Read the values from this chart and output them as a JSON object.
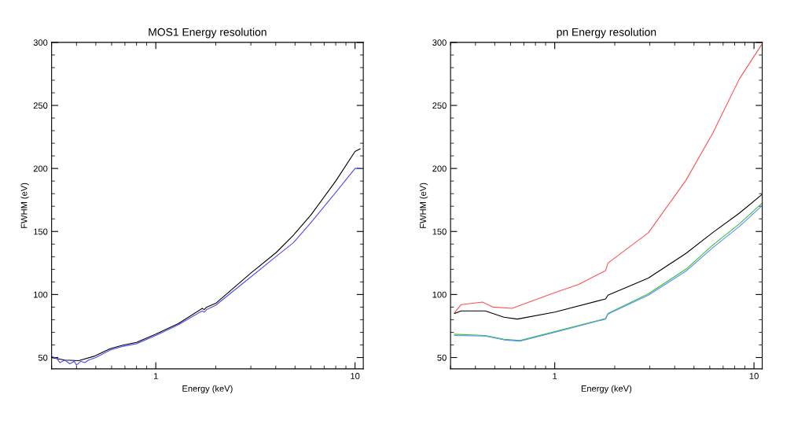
{
  "chart_data": [
    {
      "type": "line",
      "title": "MOS1 Energy resolution",
      "xlabel": "Energy (keV)",
      "ylabel": "FWHM (eV)",
      "log": "x",
      "xlim": [
        0.3,
        11
      ],
      "ylim": [
        41,
        300
      ],
      "xticks": [
        {
          "value": 0.3,
          "label": null
        },
        {
          "value": 0.4,
          "label": null
        },
        {
          "value": 0.5,
          "label": null
        },
        {
          "value": 0.6,
          "label": null
        },
        {
          "value": 0.7,
          "label": null
        },
        {
          "value": 0.8,
          "label": null
        },
        {
          "value": 0.9,
          "label": null
        },
        1,
        {
          "value": 2,
          "label": null
        },
        {
          "value": 3,
          "label": null
        },
        {
          "value": 4,
          "label": null
        },
        {
          "value": 5,
          "label": null
        },
        {
          "value": 6,
          "label": null
        },
        {
          "value": 7,
          "label": null
        },
        {
          "value": 8,
          "label": null
        },
        {
          "value": 9,
          "label": null
        },
        10
      ],
      "yticks": [
        50,
        {
          "value": 60,
          "label": null
        },
        {
          "value": 70,
          "label": null
        },
        {
          "value": 80,
          "label": null
        },
        {
          "value": 90,
          "label": null
        },
        100,
        {
          "value": 110,
          "label": null
        },
        {
          "value": 120,
          "label": null
        },
        {
          "value": 130,
          "label": null
        },
        {
          "value": 140,
          "label": null
        },
        150,
        {
          "value": 160,
          "label": null
        },
        {
          "value": 170,
          "label": null
        },
        {
          "value": 180,
          "label": null
        },
        {
          "value": 190,
          "label": null
        },
        200,
        {
          "value": 210,
          "label": null
        },
        {
          "value": 220,
          "label": null
        },
        {
          "value": 230,
          "label": null
        },
        {
          "value": 240,
          "label": null
        },
        250,
        {
          "value": 260,
          "label": null
        },
        {
          "value": 270,
          "label": null
        },
        {
          "value": 280,
          "label": null
        },
        {
          "value": 290,
          "label": null
        },
        300
      ],
      "grid": false,
      "legend": false,
      "series": [
        {
          "color": "#000000",
          "x": [
            0.3,
            0.35,
            0.41,
            0.49,
            0.59,
            0.69,
            0.8,
            1,
            1.3,
            1.71,
            1.75,
            1.8,
            2,
            3,
            4,
            4.9,
            6,
            8,
            10,
            10.6
          ],
          "values": [
            50,
            48,
            47.5,
            51,
            57,
            60,
            62,
            68.5,
            77,
            89,
            88,
            90,
            93,
            117,
            133,
            147,
            163,
            190,
            213.5,
            215.5
          ]
        },
        {
          "color": "#4a4aff",
          "x": [
            0.3,
            0.32,
            0.33,
            0.35,
            0.37,
            0.39,
            0.4,
            0.42,
            0.44,
            0.46,
            0.5,
            0.59,
            0.69,
            0.8,
            1,
            1.3,
            1.71,
            1.75,
            1.8,
            2,
            3,
            4,
            4.9,
            6,
            8,
            10,
            10.6
          ],
          "values": [
            51,
            49,
            46,
            48,
            45,
            47,
            44,
            47,
            46,
            48,
            50,
            56,
            59,
            61,
            67.5,
            76,
            87,
            86,
            88,
            91.5,
            114,
            130,
            141,
            157,
            181,
            200,
            200
          ]
        }
      ]
    },
    {
      "type": "line",
      "title": "pn Energy resolution",
      "xlabel": "Energy (keV)",
      "ylabel": "FWHM (eV)",
      "log": "x",
      "xlim": [
        0.3,
        11
      ],
      "ylim": [
        41,
        300
      ],
      "xticks": [
        {
          "value": 0.3,
          "label": null
        },
        {
          "value": 0.4,
          "label": null
        },
        {
          "value": 0.5,
          "label": null
        },
        {
          "value": 0.6,
          "label": null
        },
        {
          "value": 0.7,
          "label": null
        },
        {
          "value": 0.8,
          "label": null
        },
        {
          "value": 0.9,
          "label": null
        },
        1,
        {
          "value": 2,
          "label": null
        },
        {
          "value": 3,
          "label": null
        },
        {
          "value": 4,
          "label": null
        },
        {
          "value": 5,
          "label": null
        },
        {
          "value": 6,
          "label": null
        },
        {
          "value": 7,
          "label": null
        },
        {
          "value": 8,
          "label": null
        },
        {
          "value": 9,
          "label": null
        },
        10
      ],
      "yticks": [
        50,
        {
          "value": 60,
          "label": null
        },
        {
          "value": 70,
          "label": null
        },
        {
          "value": 80,
          "label": null
        },
        {
          "value": 90,
          "label": null
        },
        100,
        {
          "value": 110,
          "label": null
        },
        {
          "value": 120,
          "label": null
        },
        {
          "value": 130,
          "label": null
        },
        {
          "value": 140,
          "label": null
        },
        150,
        {
          "value": 160,
          "label": null
        },
        {
          "value": 170,
          "label": null
        },
        {
          "value": 180,
          "label": null
        },
        {
          "value": 190,
          "label": null
        },
        200,
        {
          "value": 210,
          "label": null
        },
        {
          "value": 220,
          "label": null
        },
        {
          "value": 230,
          "label": null
        },
        {
          "value": 240,
          "label": null
        },
        250,
        {
          "value": 260,
          "label": null
        },
        {
          "value": 270,
          "label": null
        },
        {
          "value": 280,
          "label": null
        },
        {
          "value": 290,
          "label": null
        },
        300
      ],
      "grid": false,
      "legend": false,
      "series": [
        {
          "color": "#ff5050",
          "x": [
            0.314,
            0.339,
            0.434,
            0.491,
            0.61,
            1,
            1.32,
            1.8,
            1.85,
            2.95,
            4.55,
            6.19,
            8.44,
            10.9
          ],
          "values": [
            85.5,
            92,
            94,
            90,
            89,
            101.5,
            108,
            119,
            125,
            149,
            190.5,
            227.5,
            271,
            298
          ]
        },
        {
          "color": "#000000",
          "x": [
            0.314,
            0.339,
            0.448,
            0.556,
            0.649,
            1,
            1.8,
            1.85,
            2.95,
            4.55,
            6.19,
            8.44,
            10.9
          ],
          "values": [
            85,
            87,
            87,
            82,
            80.5,
            86,
            96.5,
            99.5,
            113,
            132.5,
            149,
            164.5,
            179
          ]
        },
        {
          "color": "#30c030",
          "x": [
            0.314,
            0.448,
            0.556,
            0.669,
            1,
            1.8,
            1.85,
            2.95,
            4.55,
            6.19,
            8.44,
            10.9
          ],
          "values": [
            68.5,
            67.5,
            64.5,
            63.5,
            70.5,
            81,
            85,
            100.5,
            120,
            139,
            156,
            172
          ]
        },
        {
          "color": "#5a8cff",
          "x": [
            0.314,
            0.448,
            0.556,
            0.669,
            1,
            1.8,
            1.85,
            2.95,
            4.55,
            6.19,
            8.44,
            10.9
          ],
          "values": [
            67.5,
            67,
            64,
            63,
            70,
            80.5,
            84.5,
            99.5,
            118.5,
            137,
            154,
            170
          ]
        }
      ]
    }
  ]
}
